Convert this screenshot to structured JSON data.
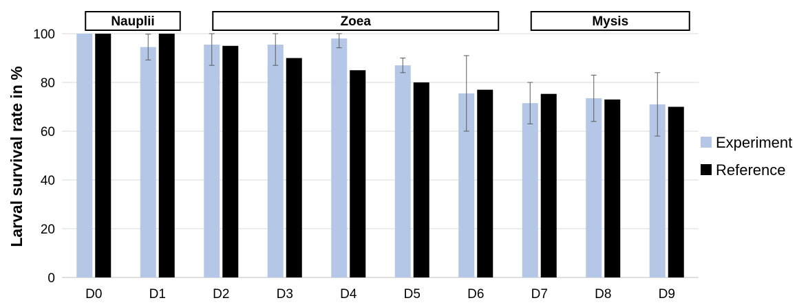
{
  "chart_data": {
    "type": "bar",
    "ylabel": "Larval survival rate in %",
    "xlabel": "",
    "ylim": [
      0,
      100
    ],
    "yticks": [
      0,
      20,
      40,
      60,
      80,
      100
    ],
    "grid": true,
    "legend_position": "right",
    "categories": [
      "D0",
      "D1",
      "D2",
      "D3",
      "D4",
      "D5",
      "D6",
      "D7",
      "D8",
      "D9"
    ],
    "series": [
      {
        "name": "Experiment",
        "color": "#b4c7e7",
        "values": [
          100,
          94.5,
          95.5,
          95.5,
          98,
          87,
          75.5,
          71.5,
          73.5,
          71
        ],
        "error": [
          0,
          5.3,
          8.5,
          8.5,
          3.8,
          3,
          15.5,
          8.5,
          9.5,
          13
        ]
      },
      {
        "name": "Reference",
        "color": "#000000",
        "values": [
          100,
          100,
          95,
          90,
          85,
          80,
          77,
          75.3,
          73,
          70
        ]
      }
    ],
    "stages": [
      {
        "label": "Nauplii",
        "from": "D0",
        "to": "D1"
      },
      {
        "label": "Zoea",
        "from": "D2",
        "to": "D6"
      },
      {
        "label": "Mysis",
        "from": "D7",
        "to": "D9"
      }
    ]
  }
}
